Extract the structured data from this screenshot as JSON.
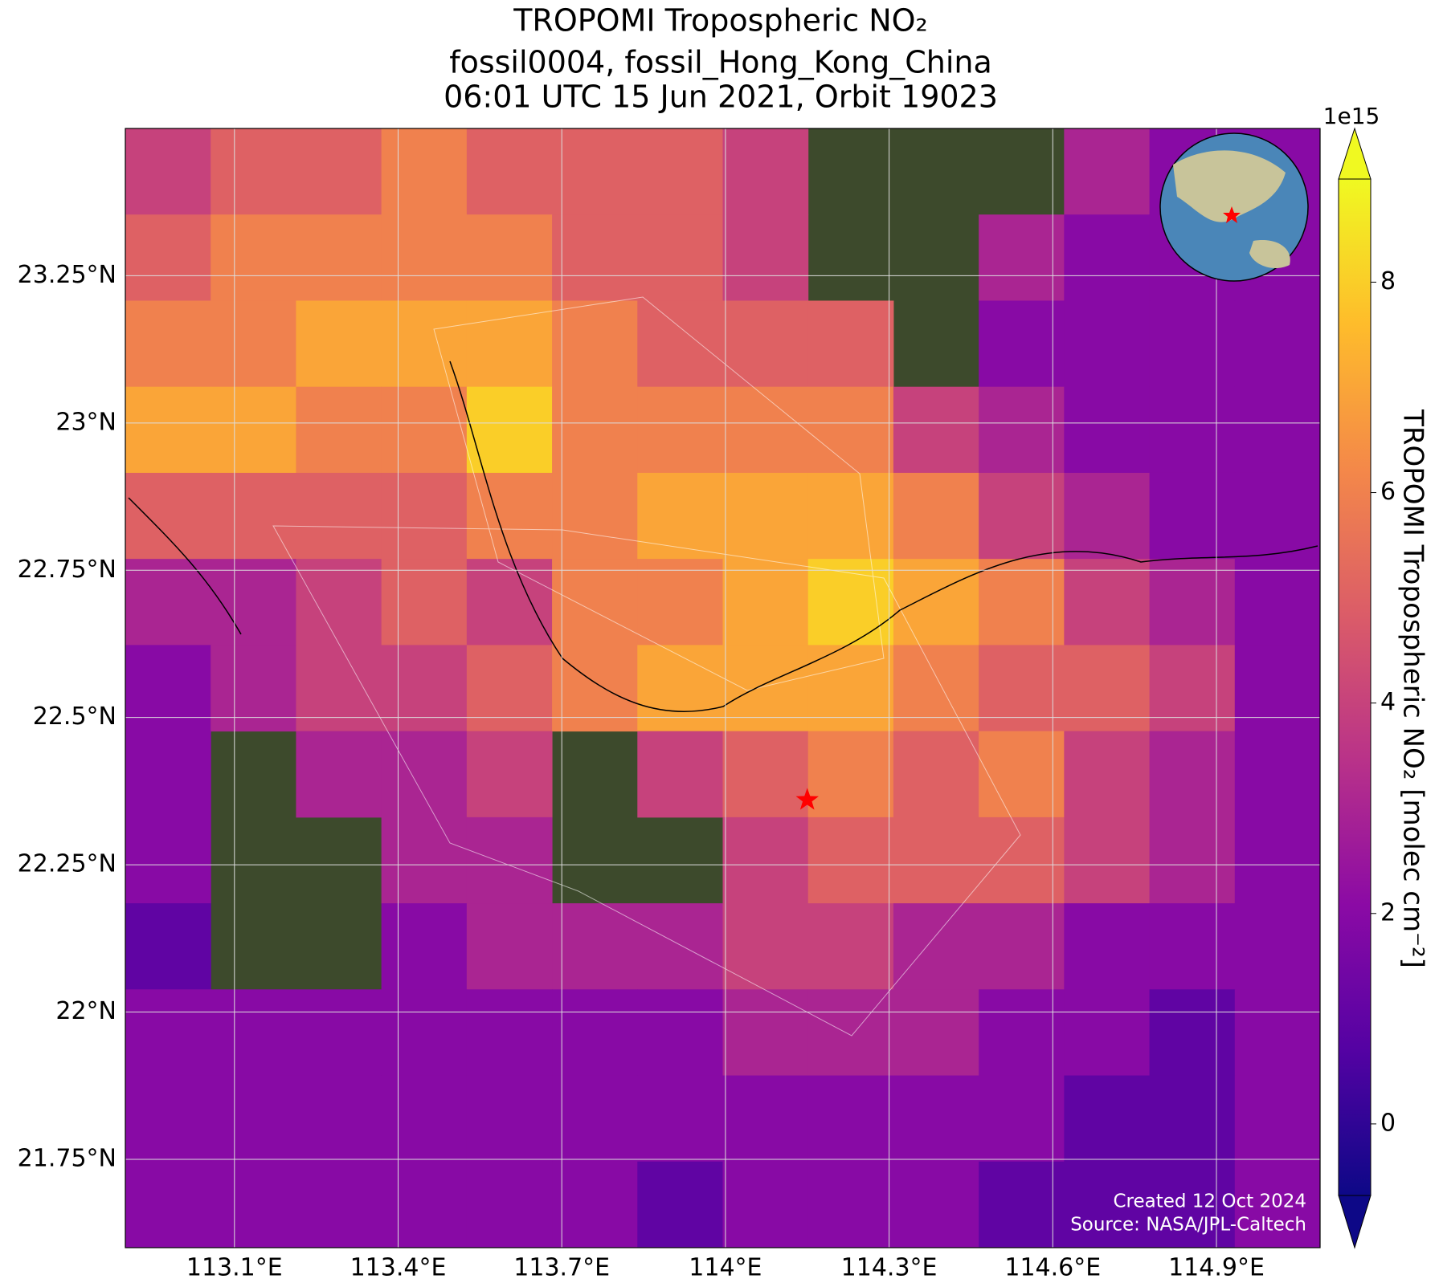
{
  "chart_data": {
    "type": "map",
    "title": [
      "TROPOMI Tropospheric NO₂",
      "fossil0004, fossil_Hong_Kong_China",
      "06:01 UTC 15 Jun 2021, Orbit 19023"
    ],
    "xlim": [
      112.9,
      115.09
    ],
    "ylim": [
      21.6,
      23.5
    ],
    "xticks": [
      {
        "value": 113.1,
        "label": "113.1°E"
      },
      {
        "value": 113.4,
        "label": "113.4°E"
      },
      {
        "value": 113.7,
        "label": "113.7°E"
      },
      {
        "value": 114.0,
        "label": "114°E"
      },
      {
        "value": 114.3,
        "label": "114.3°E"
      },
      {
        "value": 114.6,
        "label": "114.6°E"
      },
      {
        "value": 114.9,
        "label": "114.9°E"
      }
    ],
    "yticks": [
      {
        "value": 21.75,
        "label": "21.75°N"
      },
      {
        "value": 22.0,
        "label": "22°N"
      },
      {
        "value": 22.25,
        "label": "22.25°N"
      },
      {
        "value": 22.5,
        "label": "22.5°N"
      },
      {
        "value": 22.75,
        "label": "22.75°N"
      },
      {
        "value": 23.0,
        "label": "23°N"
      },
      {
        "value": 23.25,
        "label": "23.25°N"
      }
    ],
    "grid": true,
    "values": [
      [
        4,
        5,
        5,
        6,
        5,
        5,
        5,
        4,
        null,
        null,
        null,
        3,
        2,
        2
      ],
      [
        5,
        6,
        6,
        6,
        6,
        5,
        5,
        4,
        null,
        null,
        3,
        2,
        2,
        2
      ],
      [
        6,
        6,
        7,
        7,
        7,
        6,
        5,
        5,
        5,
        null,
        2,
        2,
        2,
        2
      ],
      [
        7,
        7,
        6,
        6,
        8,
        6,
        6,
        6,
        6,
        4,
        3,
        2,
        2,
        2
      ],
      [
        5,
        5,
        5,
        5,
        6,
        6,
        7,
        7,
        7,
        6,
        4,
        3,
        2,
        2
      ],
      [
        3,
        3,
        4,
        5,
        4,
        6,
        6,
        7,
        8,
        7,
        6,
        4,
        3,
        2
      ],
      [
        2,
        3,
        4,
        4,
        5,
        6,
        7,
        7,
        7,
        6,
        5,
        5,
        4,
        2
      ],
      [
        2,
        null,
        3,
        3,
        4,
        null,
        4,
        5,
        6,
        5,
        6,
        4,
        3,
        2
      ],
      [
        2,
        null,
        null,
        3,
        3,
        null,
        null,
        4,
        5,
        5,
        5,
        4,
        3,
        2
      ],
      [
        1,
        null,
        null,
        2,
        3,
        3,
        3,
        4,
        4,
        3,
        3,
        2,
        2,
        2
      ],
      [
        2,
        2,
        2,
        2,
        2,
        2,
        2,
        3,
        3,
        3,
        2,
        2,
        1,
        2
      ],
      [
        2,
        2,
        2,
        2,
        2,
        2,
        2,
        2,
        2,
        2,
        2,
        1,
        1,
        2
      ],
      [
        2,
        2,
        2,
        2,
        2,
        2,
        1,
        2,
        2,
        2,
        1,
        1,
        1,
        2
      ]
    ],
    "site": {
      "lon": 114.15,
      "lat": 22.36,
      "color": "#ff0000"
    },
    "colorbar": {
      "label": "TROPOMI Tropospheric NO₂ [molec cm⁻²]",
      "exponent": "1e15",
      "clim": [
        -0.68,
        8.98
      ],
      "ticks": [
        0,
        2,
        4,
        6,
        8
      ],
      "colormap": "plasma"
    },
    "credits": [
      "Created 12 Oct 2024",
      "Source: NASA/JPL-Caltech"
    ]
  }
}
